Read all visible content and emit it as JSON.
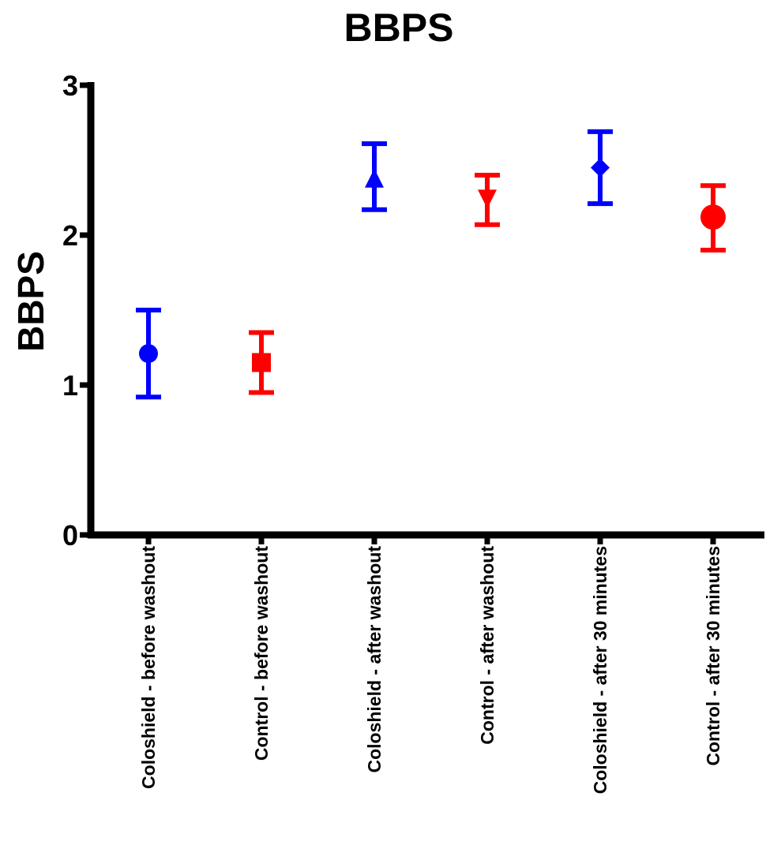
{
  "chart_data": {
    "type": "scatter",
    "title": "BBPS",
    "xlabel": "",
    "ylabel": "BBPS",
    "ylim": [
      0,
      3
    ],
    "yticks": [
      "0",
      "1",
      "2",
      "3"
    ],
    "grid": false,
    "legend": "none",
    "categories": [
      "Coloshield - before washout",
      "Control - before washout",
      "Coloshield - after washout",
      "Control - after washout",
      "Coloshield - after 30 minutes",
      "Control - after 30 minutes"
    ],
    "points": [
      {
        "category": "Coloshield - before washout",
        "mean": 1.21,
        "lower": 0.92,
        "upper": 1.5,
        "marker": "circle",
        "color": "#0000ff"
      },
      {
        "category": "Control - before washout",
        "mean": 1.15,
        "lower": 0.95,
        "upper": 1.35,
        "marker": "square",
        "color": "#ff0000"
      },
      {
        "category": "Coloshield - after washout",
        "mean": 2.38,
        "lower": 2.17,
        "upper": 2.61,
        "marker": "triangle-up",
        "color": "#0000ff"
      },
      {
        "category": "Control - after washout",
        "mean": 2.24,
        "lower": 2.07,
        "upper": 2.4,
        "marker": "triangle-down",
        "color": "#ff0000"
      },
      {
        "category": "Coloshield - after 30 minutes",
        "mean": 2.45,
        "lower": 2.21,
        "upper": 2.69,
        "marker": "diamond",
        "color": "#0000ff"
      },
      {
        "category": "Control - after 30 minutes",
        "mean": 2.12,
        "lower": 1.9,
        "upper": 2.33,
        "marker": "circle",
        "color": "#ff0000"
      }
    ]
  }
}
